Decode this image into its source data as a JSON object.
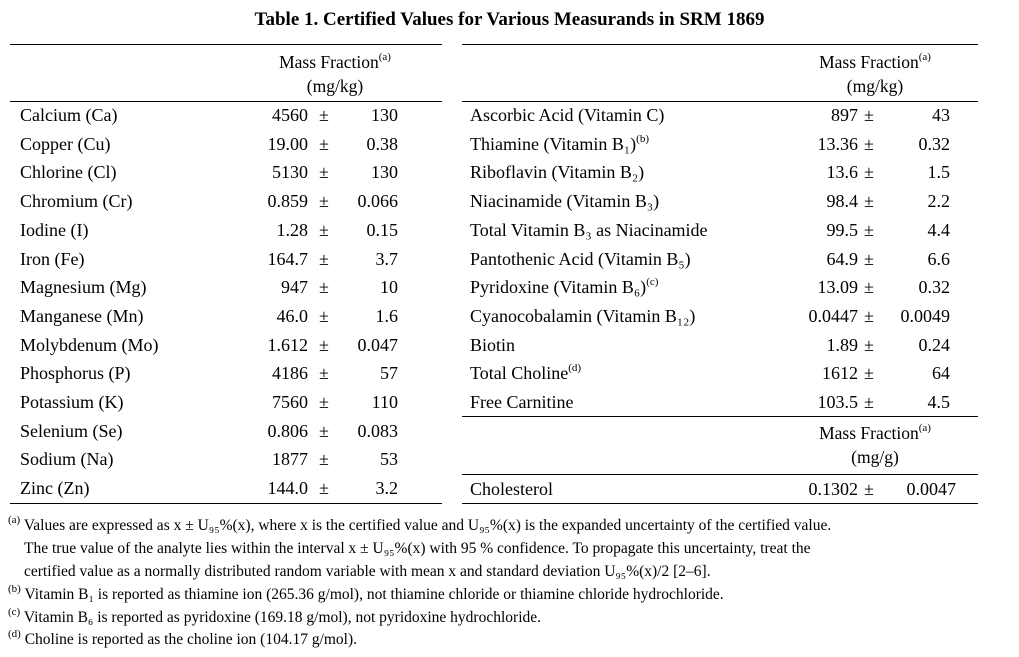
{
  "title": "Table 1.  Certified Values for Various Measurands in SRM 1869",
  "left_table": {
    "header_line1": "Mass Fraction",
    "header_sup": "(a)",
    "header_line2": "(mg/kg)",
    "rows": [
      {
        "name": "Calcium (Ca)",
        "value": "4560",
        "pm": "±",
        "unc": "130"
      },
      {
        "name": "Copper (Cu)",
        "value": "19.00",
        "pm": "±",
        "unc": "0.38"
      },
      {
        "name": "Chlorine (Cl)",
        "value": "5130",
        "pm": "±",
        "unc": "130"
      },
      {
        "name": "Chromium (Cr)",
        "value": "0.859",
        "pm": "±",
        "unc": "0.066"
      },
      {
        "name": "Iodine (I)",
        "value": "1.28",
        "pm": "±",
        "unc": "0.15"
      },
      {
        "name": "Iron (Fe)",
        "value": "164.7",
        "pm": "±",
        "unc": "3.7"
      },
      {
        "name": "Magnesium (Mg)",
        "value": "947",
        "pm": "±",
        "unc": "10"
      },
      {
        "name": "Manganese (Mn)",
        "value": "46.0",
        "pm": "±",
        "unc": "1.6"
      },
      {
        "name": "Molybdenum (Mo)",
        "value": "1.612",
        "pm": "±",
        "unc": "0.047"
      },
      {
        "name": "Phosphorus (P)",
        "value": "4186",
        "pm": "±",
        "unc": "57"
      },
      {
        "name": "Potassium (K)",
        "value": "7560",
        "pm": "±",
        "unc": "110"
      },
      {
        "name": "Selenium (Se)",
        "value": "0.806",
        "pm": "±",
        "unc": "0.083"
      },
      {
        "name": "Sodium (Na)",
        "value": "1877",
        "pm": "±",
        "unc": "53"
      },
      {
        "name": "Zinc (Zn)",
        "value": "144.0",
        "pm": "±",
        "unc": "3.2"
      }
    ]
  },
  "right_table": {
    "header_line1": "Mass Fraction",
    "header_sup": "(a)",
    "header_line2": "(mg/kg)",
    "rows": [
      {
        "name": "Ascorbic Acid (Vitamin C)",
        "value": "897",
        "pm": "±",
        "unc": "43"
      },
      {
        "name": "Thiamine (Vitamin B₁)",
        "sup": "(b)",
        "value": "13.36",
        "pm": "±",
        "unc": "0.32"
      },
      {
        "name": "Riboflavin (Vitamin B₂)",
        "value": "13.6",
        "pm": "±",
        "unc": "1.5"
      },
      {
        "name": "Niacinamide (Vitamin B₃)",
        "value": "98.4",
        "pm": "±",
        "unc": "2.2"
      },
      {
        "name": "Total Vitamin B₃ as Niacinamide",
        "value": "99.5",
        "pm": "±",
        "unc": "4.4"
      },
      {
        "name": "Pantothenic Acid (Vitamin B₅)",
        "value": "64.9",
        "pm": "±",
        "unc": "6.6"
      },
      {
        "name": "Pyridoxine (Vitamin B₆)",
        "sup": "(c)",
        "value": "13.09",
        "pm": "±",
        "unc": "0.32"
      },
      {
        "name": "Cyanocobalamin (Vitamin B₁₂)",
        "value": "0.0447",
        "pm": "±",
        "unc": "0.0049"
      },
      {
        "name": "Biotin",
        "value": "1.89",
        "pm": "±",
        "unc": "0.24"
      },
      {
        "name": "Total Choline",
        "sup": "(d)",
        "value": "1612",
        "pm": "±",
        "unc": "64"
      },
      {
        "name": "Free Carnitine",
        "value": "103.5",
        "pm": "±",
        "unc": "4.5"
      }
    ],
    "sub_header_line1": "Mass Fraction",
    "sub_header_sup": "(a)",
    "sub_header_line2": "(mg/g)",
    "sub_rows": [
      {
        "name": "Cholesterol",
        "value": "0.1302",
        "pm": "±",
        "unc": "0.0047"
      }
    ]
  },
  "footnotes": {
    "a_mark": "(a)",
    "a_line1": "Values are expressed as x ± U₉₅%(x), where x is the certified value and U₉₅%(x) is the expanded uncertainty of the certified value.",
    "a_line2": "The true value of the analyte lies within the interval x ± U₉₅%(x) with 95 % confidence.  To propagate this uncertainty, treat the",
    "a_line3": "certified value as a normally distributed random variable with mean x and standard deviation U₉₅%(x)/2 [2–6].",
    "b_mark": "(b)",
    "b_text": "Vitamin B₁ is reported as thiamine ion (265.36 g/mol), not thiamine chloride or thiamine chloride hydrochloride.",
    "c_mark": "(c)",
    "c_text": "Vitamin B₆ is reported as pyridoxine (169.18 g/mol), not pyridoxine hydrochloride.",
    "d_mark": "(d)",
    "d_text": "Choline is reported as the choline ion (104.17 g/mol)."
  }
}
